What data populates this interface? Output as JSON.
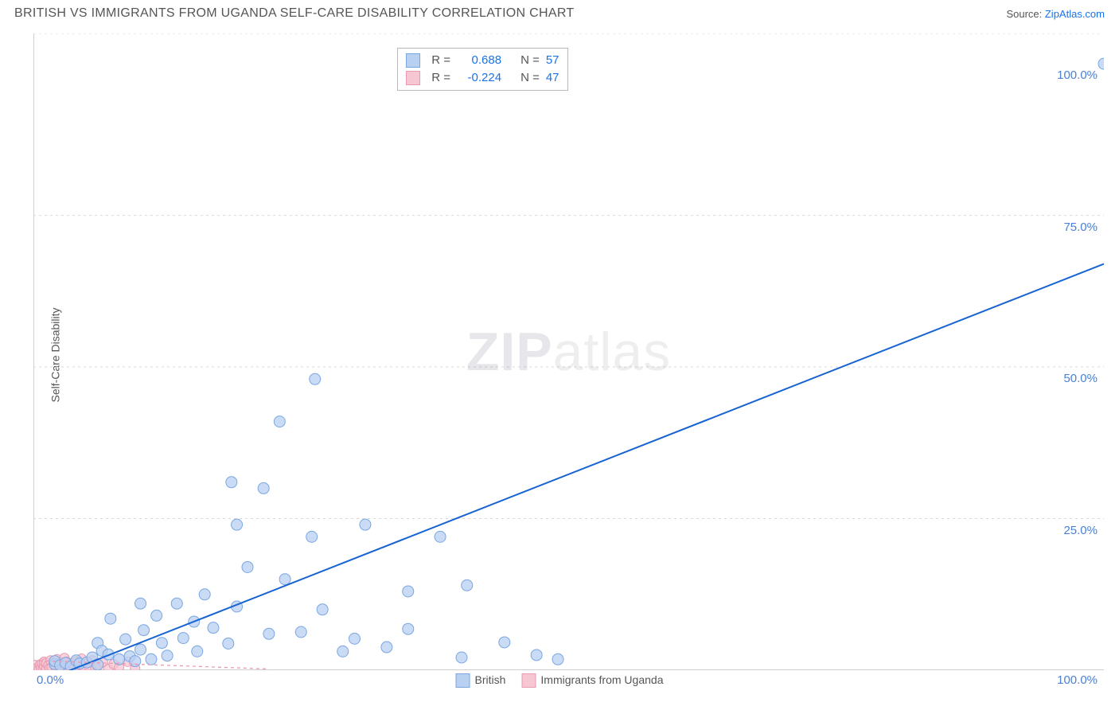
{
  "header": {
    "title": "BRITISH VS IMMIGRANTS FROM UGANDA SELF-CARE DISABILITY CORRELATION CHART",
    "source_prefix": "Source: ",
    "source_link": "ZipAtlas.com"
  },
  "ylabel": "Self-Care Disability",
  "watermark": {
    "bold": "ZIP",
    "rest": "atlas"
  },
  "chart": {
    "type": "scatter",
    "xlim": [
      0,
      100
    ],
    "ylim": [
      0,
      105
    ],
    "grid_color": "#d9d9d9",
    "axis_color": "#cfcfcf",
    "background": "#ffffff",
    "y_gridlines": [
      25,
      50,
      75,
      105
    ],
    "y_tick_labels": [
      {
        "v": 25,
        "label": "25.0%"
      },
      {
        "v": 50,
        "label": "50.0%"
      },
      {
        "v": 75,
        "label": "75.0%"
      },
      {
        "v": 100,
        "label": "100.0%"
      }
    ],
    "x_tick_labels": [
      {
        "v": 0,
        "label": "0.0%"
      },
      {
        "v": 100,
        "label": "100.0%"
      }
    ],
    "series": [
      {
        "name": "British",
        "marker_fill": "#b8d0f2",
        "marker_stroke": "#7aa6e0",
        "marker_r": 7,
        "line_color": "#1763d1",
        "line_width": 2,
        "line_dash": "none",
        "trend": {
          "x1": 2,
          "y1": -1,
          "x2": 100,
          "y2": 67
        },
        "R": "0.688",
        "N": "57",
        "points": [
          [
            2,
            1
          ],
          [
            2,
            1.5
          ],
          [
            2.5,
            0.8
          ],
          [
            3,
            1.2
          ],
          [
            3.5,
            0.6
          ],
          [
            4,
            1.6
          ],
          [
            4.3,
            1.1
          ],
          [
            5,
            1.3
          ],
          [
            5.5,
            2.1
          ],
          [
            6,
            0.9
          ],
          [
            6,
            4.5
          ],
          [
            6.4,
            3.2
          ],
          [
            7,
            2.6
          ],
          [
            7.2,
            8.5
          ],
          [
            8,
            1.8
          ],
          [
            8.6,
            5.1
          ],
          [
            9,
            2.3
          ],
          [
            9.5,
            1.5
          ],
          [
            10,
            3.4
          ],
          [
            10,
            11
          ],
          [
            10.3,
            6.6
          ],
          [
            11,
            1.8
          ],
          [
            11.5,
            9
          ],
          [
            12,
            4.5
          ],
          [
            12.5,
            2.4
          ],
          [
            13.4,
            11
          ],
          [
            14,
            5.3
          ],
          [
            15,
            8
          ],
          [
            15.3,
            3.1
          ],
          [
            16,
            12.5
          ],
          [
            16.8,
            7
          ],
          [
            18.2,
            4.4
          ],
          [
            18.5,
            31
          ],
          [
            19,
            24
          ],
          [
            19,
            10.5
          ],
          [
            20,
            17
          ],
          [
            21.5,
            30
          ],
          [
            22,
            6
          ],
          [
            23,
            41
          ],
          [
            23.5,
            15
          ],
          [
            25,
            6.3
          ],
          [
            26,
            22
          ],
          [
            26.3,
            48
          ],
          [
            27,
            10
          ],
          [
            28.9,
            3.1
          ],
          [
            30,
            5.2
          ],
          [
            31,
            24
          ],
          [
            33,
            3.8
          ],
          [
            35,
            6.8
          ],
          [
            35,
            13
          ],
          [
            38,
            22
          ],
          [
            40,
            2.1
          ],
          [
            40.5,
            14
          ],
          [
            44,
            4.6
          ],
          [
            47,
            2.5
          ],
          [
            49,
            1.8
          ],
          [
            100,
            100
          ]
        ]
      },
      {
        "name": "Immigrants from Uganda",
        "marker_fill": "#f6c6d3",
        "marker_stroke": "#e89ab0",
        "marker_r": 6,
        "line_color": "#e89ab0",
        "line_width": 1.3,
        "line_dash": "4 4",
        "trend": {
          "x1": 0,
          "y1": 1.6,
          "x2": 22,
          "y2": 0.2
        },
        "R": "-0.224",
        "N": "47",
        "points": [
          [
            0.2,
            0.1
          ],
          [
            0.3,
            0.3
          ],
          [
            0.4,
            0.5
          ],
          [
            0.5,
            0.2
          ],
          [
            0.6,
            0.9
          ],
          [
            0.7,
            0.4
          ],
          [
            0.8,
            1.1
          ],
          [
            0.9,
            0.3
          ],
          [
            1.0,
            0.7
          ],
          [
            1.0,
            1.4
          ],
          [
            1.2,
            0.2
          ],
          [
            1.2,
            1.2
          ],
          [
            1.4,
            0.8
          ],
          [
            1.5,
            0.3
          ],
          [
            1.6,
            1.6
          ],
          [
            1.7,
            0.5
          ],
          [
            1.9,
            1.1
          ],
          [
            2.0,
            0.9
          ],
          [
            2.1,
            0.4
          ],
          [
            2.2,
            1.8
          ],
          [
            2.4,
            0.2
          ],
          [
            2.5,
            1.3
          ],
          [
            2.6,
            0.6
          ],
          [
            2.8,
            1.0
          ],
          [
            2.9,
            2.0
          ],
          [
            3.0,
            0.3
          ],
          [
            3.1,
            1.4
          ],
          [
            3.3,
            0.8
          ],
          [
            3.4,
            0.2
          ],
          [
            3.6,
            1.1
          ],
          [
            3.8,
            0.5
          ],
          [
            4.0,
            1.5
          ],
          [
            4.1,
            0.3
          ],
          [
            4.3,
            0.9
          ],
          [
            4.5,
            1.9
          ],
          [
            4.7,
            0.4
          ],
          [
            5.0,
            1.2
          ],
          [
            5.2,
            0.6
          ],
          [
            5.5,
            1.6
          ],
          [
            5.8,
            0.3
          ],
          [
            6.1,
            0.9
          ],
          [
            6.5,
            1.3
          ],
          [
            7.0,
            0.2
          ],
          [
            7.5,
            1.0
          ],
          [
            8.0,
            0.5
          ],
          [
            8.8,
            1.4
          ],
          [
            9.5,
            0.3
          ]
        ]
      }
    ],
    "r_box": {
      "R_label": "R =",
      "N_label": "N ="
    },
    "bottom_legend": [
      {
        "label": "British",
        "fill": "#b8d0f2",
        "stroke": "#7aa6e0"
      },
      {
        "label": "Immigrants from Uganda",
        "fill": "#f6c6d3",
        "stroke": "#e89ab0"
      }
    ]
  },
  "label_color": "#4a80d6",
  "title_color": "#555555"
}
